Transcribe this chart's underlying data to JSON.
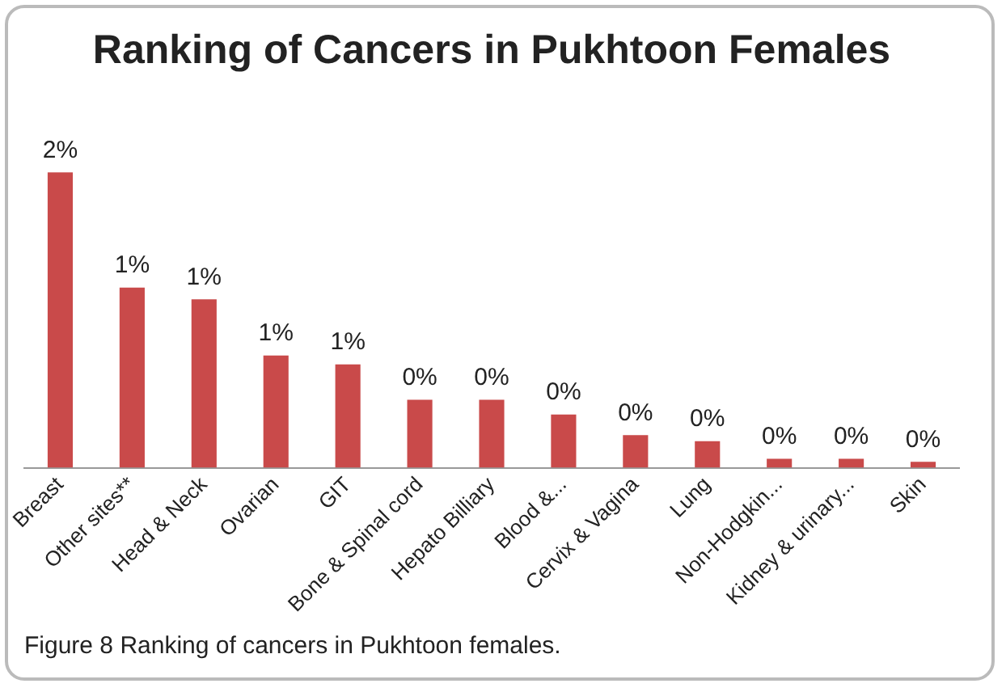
{
  "chart_data": {
    "type": "bar",
    "title": "Ranking of Cancers in Pukhtoon Females",
    "categories": [
      "Breast",
      "Other sites**",
      "Head & Neck",
      "Ovarian",
      "GIT",
      "Bone & Spinal cord",
      "Hepato Billiary",
      "Blood &...",
      "Cervix & Vagina",
      "Lung",
      "Non-Hodgkin...",
      "Kidney & urinary...",
      "Skin"
    ],
    "values": [
      2,
      1.22,
      1.14,
      0.76,
      0.7,
      0.46,
      0.46,
      0.36,
      0.22,
      0.18,
      0.06,
      0.06,
      0.04
    ],
    "value_labels": [
      "2%",
      "1%",
      "1%",
      "1%",
      "1%",
      "0%",
      "0%",
      "0%",
      "0%",
      "0%",
      "0%",
      "0%",
      "0%"
    ],
    "color": "#c94a4a",
    "tick_labels": "x",
    "grid": false,
    "legend": false,
    "annotations": [
      "Figure 8 Ranking of cancers in Pukhtoon females."
    ]
  }
}
